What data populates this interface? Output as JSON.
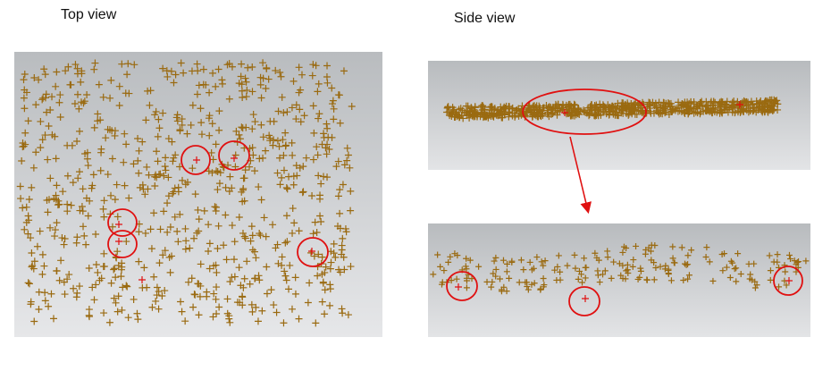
{
  "labels": {
    "top_view": "Top view",
    "side_view": "Side view"
  },
  "colors": {
    "marker": "#9a6a10",
    "highlight": "#e01010",
    "panel_top": "#b9bcbf",
    "panel_bottom": "#e6e7e9"
  },
  "icons": {
    "marker": "plus-marker-icon",
    "highlight": "red-circle-highlight"
  }
}
